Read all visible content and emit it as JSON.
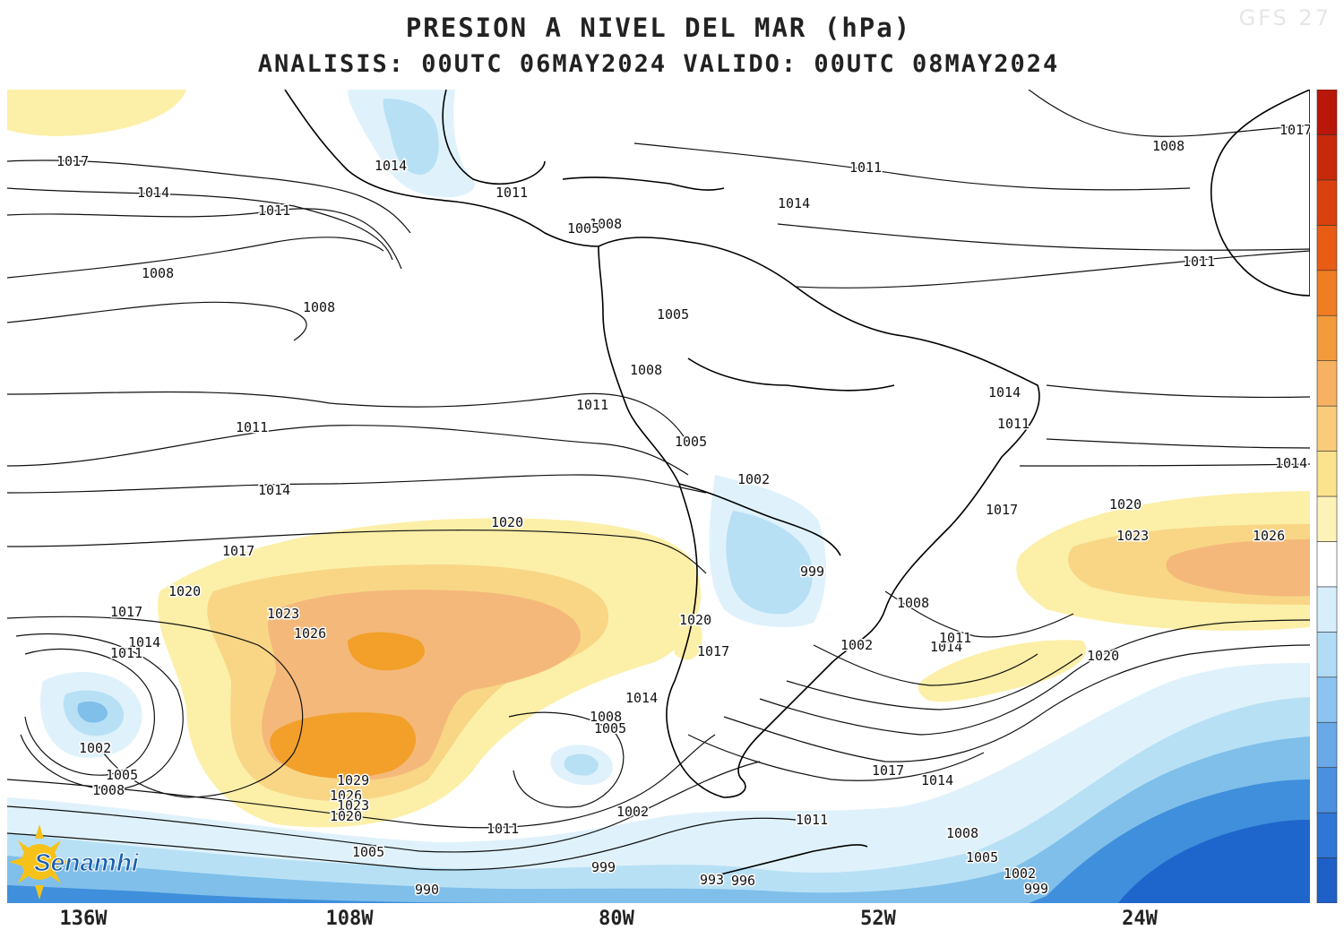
{
  "header": {
    "title": "PRESION A NIVEL DEL MAR (hPa)",
    "subtitle": "ANALISIS: 00UTC 06MAY2024 VALIDO: 00UTC 08MAY2024",
    "model_tag": "GFS 27"
  },
  "axis": {
    "longitude_labels": [
      "136W",
      "108W",
      "80W",
      "52W",
      "24W"
    ]
  },
  "isobar_labels": [
    "1017",
    "1014",
    "1011",
    "1008",
    "1008",
    "1011",
    "1014",
    "1017",
    "1020",
    "1023",
    "1026",
    "1020",
    "1017",
    "1014",
    "1011",
    "1002",
    "1005",
    "1008",
    "1029",
    "1026",
    "1023",
    "1020",
    "1011",
    "1005",
    "990",
    "999",
    "1002",
    "1005",
    "1008",
    "1014",
    "1017",
    "1020",
    "999",
    "1002",
    "1005",
    "1011",
    "1014",
    "1011",
    "1008",
    "1005",
    "1011",
    "1014",
    "1008",
    "1011",
    "1014",
    "1020",
    "1023",
    "1026",
    "1017",
    "1017",
    "1014",
    "1011",
    "1008",
    "1005",
    "1002",
    "999",
    "993",
    "996",
    "1014",
    "1011",
    "1008",
    "1002",
    "1008",
    "1005",
    "1011",
    "1014",
    "1017",
    "1020"
  ],
  "logo": {
    "text": "Senamhi"
  },
  "colors": {
    "high_light": "#fcefa8",
    "high_mid": "#f8d686",
    "high_strong": "#f4b97a",
    "high_core": "#f2a02a",
    "low_light": "#dff2fb",
    "low_mid": "#b8e0f5",
    "low_strong": "#7fbfea",
    "low_core": "#3f8fdc",
    "low_deep": "#1f66cc"
  },
  "colorbar": [
    "#1e5fc8",
    "#2f76d6",
    "#4a8fe0",
    "#6aa9e8",
    "#8cc3f0",
    "#b2dbf6",
    "#d7eefb",
    "#ffffff",
    "#fdf3b8",
    "#fbe28d",
    "#f8cc7a",
    "#f6b162",
    "#f39a3c",
    "#ef7d22",
    "#e85d13",
    "#d9420e",
    "#c72a0b",
    "#b8170a"
  ]
}
